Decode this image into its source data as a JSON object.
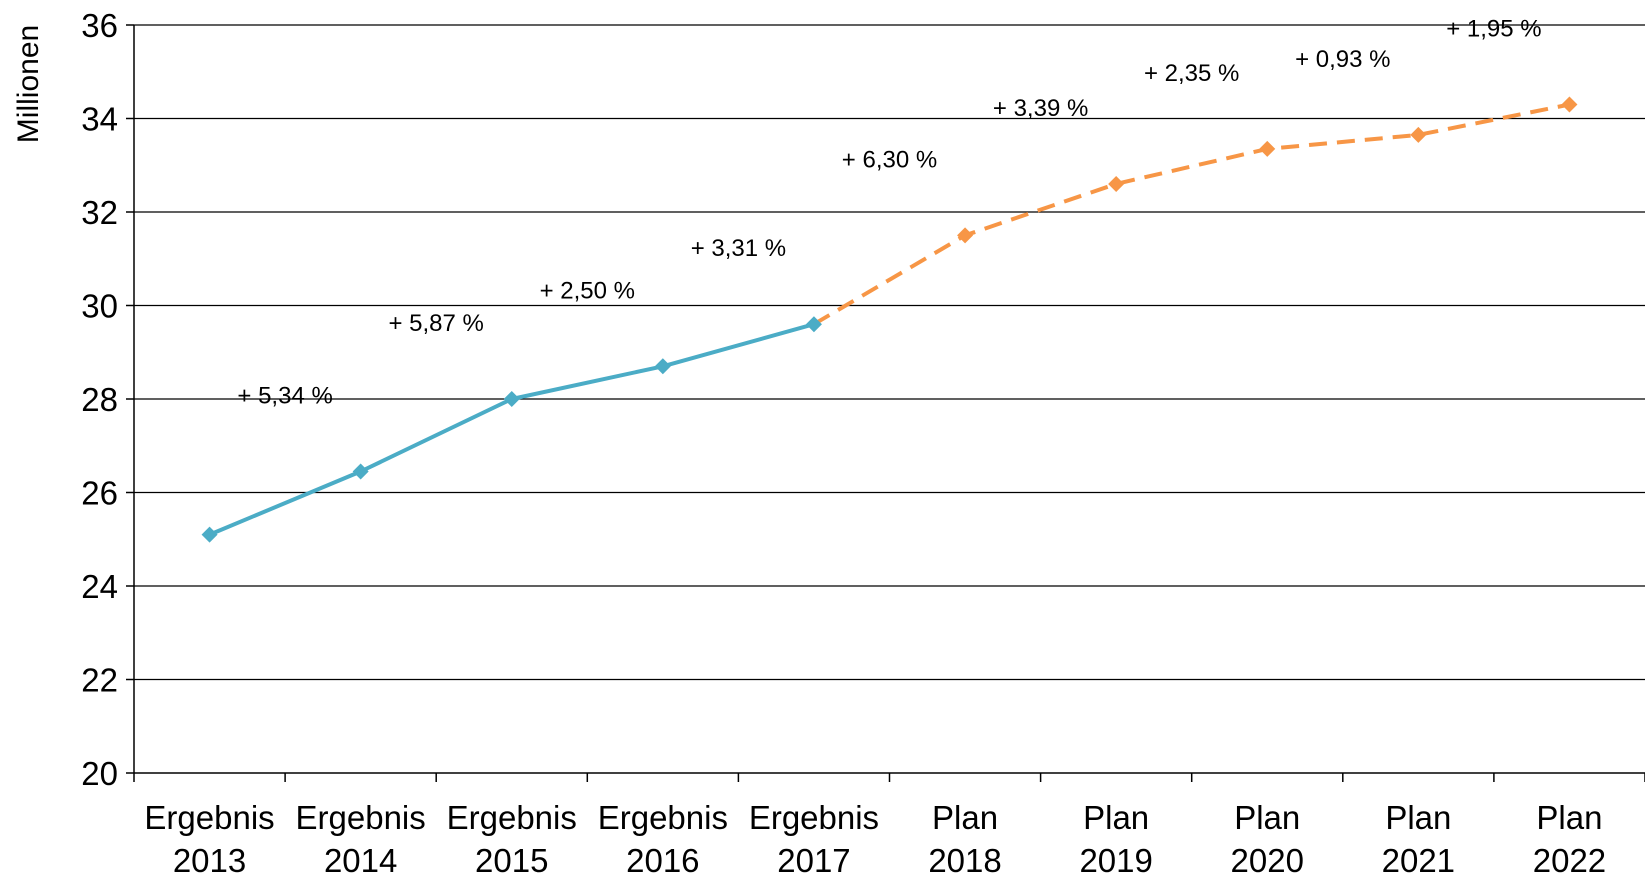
{
  "chart_data": {
    "type": "line",
    "ylabel": "Millionen",
    "ylim": [
      20,
      36
    ],
    "yticks": [
      20,
      22,
      24,
      26,
      28,
      30,
      32,
      34,
      36
    ],
    "grid": true,
    "categories": [
      [
        "Ergebnis",
        "2013"
      ],
      [
        "Ergebnis",
        "2014"
      ],
      [
        "Ergebnis",
        "2015"
      ],
      [
        "Ergebnis",
        "2016"
      ],
      [
        "Ergebnis",
        "2017"
      ],
      [
        "Plan",
        "2018"
      ],
      [
        "Plan",
        "2019"
      ],
      [
        "Plan",
        "2020"
      ],
      [
        "Plan",
        "2021"
      ],
      [
        "Plan",
        "2022"
      ]
    ],
    "series": [
      {
        "style": "solid",
        "color": "#4BACC6",
        "values": [
          25.1,
          26.45,
          28.0,
          28.7,
          29.6,
          null,
          null,
          null,
          null,
          null
        ]
      },
      {
        "style": "dashed",
        "color": "#F79646",
        "values": [
          null,
          null,
          null,
          null,
          29.6,
          31.5,
          32.6,
          33.35,
          33.65,
          34.3
        ]
      }
    ],
    "data_labels": [
      "+ 5,34 %",
      "+ 5,87 %",
      "+ 2,50 %",
      "+ 3,31 %",
      "+ 6,30 %",
      "+ 3,39 %",
      "+ 2,35 %",
      "+ 0,93 %",
      "+ 1,95 %"
    ]
  }
}
